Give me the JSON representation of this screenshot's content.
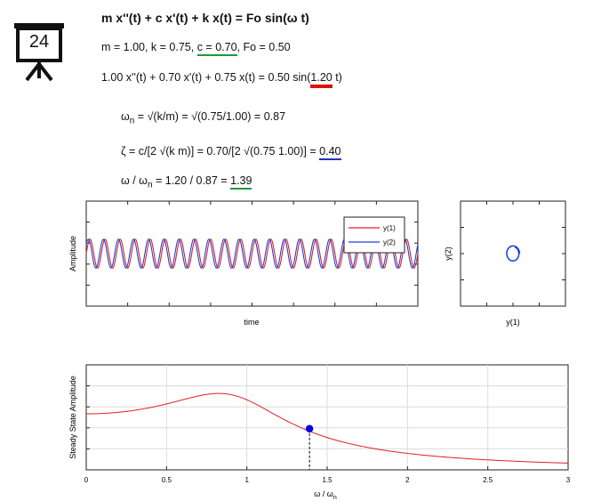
{
  "badge": {
    "number": "24"
  },
  "equations": {
    "title": "m x''(t) + c x'(t) + k x(t) = Fo sin(ω t)",
    "params_prefix": "m = 1.00, k = 0.75, ",
    "params_c": "c = 0.70",
    "params_suffix": ", Fo = 0.50",
    "ode_prefix": "1.00 x''(t) + 0.70 x'(t) + 0.75 x(t) = 0.50 sin(",
    "ode_freq": "1.20",
    "ode_suffix": " t)",
    "wn_symbol": "ω",
    "wn_sub": "n",
    "wn_rest": " = √(k/m) = √(0.75/1.00) = 0.87",
    "zeta_prefix": "ζ = c/[2 √(k m)] = 0.70/[2 √(0.75 1.00)] = ",
    "zeta_value": "0.40",
    "ratio_a": "ω / ω",
    "ratio_sub": "n",
    "ratio_b": " = 1.20 / 0.87 = ",
    "ratio_value": "1.39"
  },
  "colors": {
    "y1": "#e02020",
    "y2": "#2040e0",
    "marker": "#0000ee",
    "green": "#1a9a3c",
    "red": "#e01010",
    "blue": "#2233bb"
  },
  "chart_data": [
    {
      "type": "line",
      "title": "",
      "xlabel": "time",
      "ylabel": "Amplitude",
      "legend": "top-right",
      "xlim": [
        0,
        100
      ],
      "ylim": [
        -2,
        2
      ],
      "series": [
        {
          "name": "y(1)",
          "amplitude": 0.55,
          "cycles": 22,
          "phase": 0.0
        },
        {
          "name": "y(2)",
          "amplitude": 0.55,
          "cycles": 22,
          "phase": 0.7
        }
      ]
    },
    {
      "type": "line",
      "title": "",
      "xlabel": "y(1)",
      "ylabel": "y(2)",
      "xlim": [
        -2,
        2
      ],
      "ylim": [
        -2,
        2
      ],
      "series": [
        {
          "name": "phase orbit",
          "x_radius": 0.25,
          "y_radius": 0.3
        }
      ]
    },
    {
      "type": "line",
      "title": "",
      "xlabel": "ω / ωn",
      "ylabel": "Steady State Amplitude",
      "xlim": [
        0,
        3
      ],
      "ylim": [
        0,
        1.25
      ],
      "xticks": [
        0,
        0.5,
        1,
        1.5,
        2,
        2.5,
        3
      ],
      "xtick_labels": [
        "0",
        "0.5",
        "1",
        "1.5",
        "2",
        "2.5",
        "3"
      ],
      "zeta": 0.4,
      "marker": {
        "x": 1.39,
        "y": 0.49
      }
    }
  ]
}
